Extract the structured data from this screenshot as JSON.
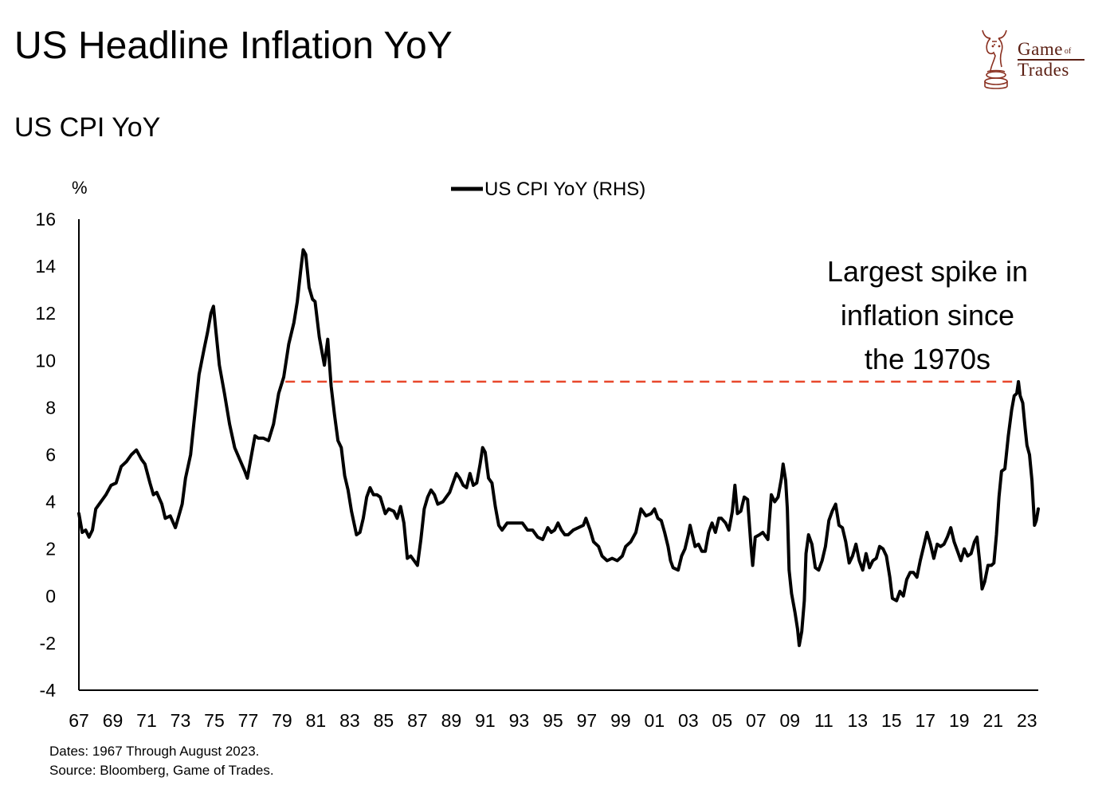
{
  "title": "US Headline Inflation YoY",
  "subtitle": "US CPI YoY",
  "logo": {
    "line1": "Game",
    "of": "of",
    "line2": "Trades",
    "icon": "chess-knight-bull-icon"
  },
  "footnotes": {
    "dates": "Dates: 1967 Through August 2023.",
    "source": "Source: Bloomberg, Game of Trades."
  },
  "colors": {
    "line": "#000000",
    "dashed": "#e8472b",
    "logo": "#5a1e12"
  },
  "chart_data": {
    "type": "line",
    "title": "US CPI YoY",
    "ylabel": "%",
    "xlabel": "",
    "ylim": [
      -4,
      16
    ],
    "yticks": [
      -4,
      -2,
      0,
      2,
      4,
      6,
      8,
      10,
      12,
      14,
      16
    ],
    "xlim": [
      1967,
      2023.67
    ],
    "xticks": [
      {
        "year": 1967,
        "label": "67"
      },
      {
        "year": 1969,
        "label": "69"
      },
      {
        "year": 1971,
        "label": "71"
      },
      {
        "year": 1973,
        "label": "73"
      },
      {
        "year": 1975,
        "label": "75"
      },
      {
        "year": 1977,
        "label": "77"
      },
      {
        "year": 1979,
        "label": "79"
      },
      {
        "year": 1981,
        "label": "81"
      },
      {
        "year": 1983,
        "label": "83"
      },
      {
        "year": 1985,
        "label": "85"
      },
      {
        "year": 1987,
        "label": "87"
      },
      {
        "year": 1989,
        "label": "89"
      },
      {
        "year": 1991,
        "label": "91"
      },
      {
        "year": 1993,
        "label": "93"
      },
      {
        "year": 1995,
        "label": "95"
      },
      {
        "year": 1997,
        "label": "97"
      },
      {
        "year": 1999,
        "label": "99"
      },
      {
        "year": 2001,
        "label": "01"
      },
      {
        "year": 2003,
        "label": "03"
      },
      {
        "year": 2005,
        "label": "05"
      },
      {
        "year": 2007,
        "label": "07"
      },
      {
        "year": 2009,
        "label": "09"
      },
      {
        "year": 2011,
        "label": "11"
      },
      {
        "year": 2013,
        "label": "13"
      },
      {
        "year": 2015,
        "label": "15"
      },
      {
        "year": 2017,
        "label": "17"
      },
      {
        "year": 2019,
        "label": "19"
      },
      {
        "year": 2021,
        "label": "21"
      },
      {
        "year": 2023,
        "label": "23"
      }
    ],
    "legend": {
      "label": "US CPI YoY (RHS)",
      "position": "top-center"
    },
    "grid": false,
    "series": [
      {
        "name": "US CPI YoY (RHS)",
        "points": [
          [
            1967.0,
            3.5
          ],
          [
            1967.2,
            2.7
          ],
          [
            1967.4,
            2.8
          ],
          [
            1967.6,
            2.5
          ],
          [
            1967.8,
            2.8
          ],
          [
            1968.0,
            3.7
          ],
          [
            1968.3,
            4.0
          ],
          [
            1968.6,
            4.3
          ],
          [
            1968.9,
            4.7
          ],
          [
            1969.2,
            4.8
          ],
          [
            1969.5,
            5.5
          ],
          [
            1969.8,
            5.7
          ],
          [
            1970.1,
            6.0
          ],
          [
            1970.4,
            6.2
          ],
          [
            1970.7,
            5.8
          ],
          [
            1970.9,
            5.6
          ],
          [
            1971.2,
            4.8
          ],
          [
            1971.4,
            4.3
          ],
          [
            1971.6,
            4.4
          ],
          [
            1971.9,
            3.9
          ],
          [
            1972.1,
            3.3
          ],
          [
            1972.4,
            3.4
          ],
          [
            1972.7,
            2.9
          ],
          [
            1972.9,
            3.4
          ],
          [
            1973.1,
            3.9
          ],
          [
            1973.3,
            5.0
          ],
          [
            1973.6,
            6.0
          ],
          [
            1973.8,
            7.4
          ],
          [
            1974.1,
            9.4
          ],
          [
            1974.4,
            10.5
          ],
          [
            1974.6,
            11.2
          ],
          [
            1974.8,
            12.0
          ],
          [
            1974.95,
            12.3
          ],
          [
            1975.1,
            11.2
          ],
          [
            1975.3,
            9.8
          ],
          [
            1975.6,
            8.6
          ],
          [
            1975.9,
            7.3
          ],
          [
            1976.2,
            6.3
          ],
          [
            1976.5,
            5.8
          ],
          [
            1976.8,
            5.3
          ],
          [
            1976.95,
            5.0
          ],
          [
            1977.2,
            6.0
          ],
          [
            1977.4,
            6.8
          ],
          [
            1977.6,
            6.7
          ],
          [
            1977.9,
            6.7
          ],
          [
            1978.2,
            6.6
          ],
          [
            1978.5,
            7.3
          ],
          [
            1978.8,
            8.6
          ],
          [
            1979.1,
            9.3
          ],
          [
            1979.4,
            10.7
          ],
          [
            1979.7,
            11.6
          ],
          [
            1979.9,
            12.5
          ],
          [
            1980.1,
            13.8
          ],
          [
            1980.25,
            14.7
          ],
          [
            1980.4,
            14.5
          ],
          [
            1980.6,
            13.1
          ],
          [
            1980.8,
            12.6
          ],
          [
            1980.95,
            12.5
          ],
          [
            1981.2,
            11.0
          ],
          [
            1981.5,
            9.8
          ],
          [
            1981.7,
            10.9
          ],
          [
            1981.9,
            8.9
          ],
          [
            1982.1,
            7.7
          ],
          [
            1982.3,
            6.6
          ],
          [
            1982.5,
            6.3
          ],
          [
            1982.7,
            5.1
          ],
          [
            1982.9,
            4.5
          ],
          [
            1983.1,
            3.6
          ],
          [
            1983.4,
            2.6
          ],
          [
            1983.6,
            2.7
          ],
          [
            1983.8,
            3.3
          ],
          [
            1984.0,
            4.2
          ],
          [
            1984.2,
            4.6
          ],
          [
            1984.4,
            4.3
          ],
          [
            1984.6,
            4.3
          ],
          [
            1984.8,
            4.2
          ],
          [
            1985.1,
            3.5
          ],
          [
            1985.3,
            3.7
          ],
          [
            1985.6,
            3.6
          ],
          [
            1985.8,
            3.3
          ],
          [
            1986.0,
            3.8
          ],
          [
            1986.2,
            3.1
          ],
          [
            1986.4,
            1.6
          ],
          [
            1986.6,
            1.7
          ],
          [
            1986.8,
            1.5
          ],
          [
            1987.0,
            1.3
          ],
          [
            1987.2,
            2.4
          ],
          [
            1987.4,
            3.7
          ],
          [
            1987.6,
            4.2
          ],
          [
            1987.8,
            4.5
          ],
          [
            1988.0,
            4.3
          ],
          [
            1988.2,
            3.9
          ],
          [
            1988.5,
            4.0
          ],
          [
            1988.7,
            4.2
          ],
          [
            1988.9,
            4.4
          ],
          [
            1989.1,
            4.8
          ],
          [
            1989.3,
            5.2
          ],
          [
            1989.5,
            5.0
          ],
          [
            1989.7,
            4.7
          ],
          [
            1989.9,
            4.6
          ],
          [
            1990.1,
            5.2
          ],
          [
            1990.3,
            4.7
          ],
          [
            1990.5,
            4.8
          ],
          [
            1990.7,
            5.6
          ],
          [
            1990.85,
            6.3
          ],
          [
            1991.0,
            6.1
          ],
          [
            1991.2,
            5.0
          ],
          [
            1991.4,
            4.8
          ],
          [
            1991.6,
            3.8
          ],
          [
            1991.8,
            3.0
          ],
          [
            1992.0,
            2.8
          ],
          [
            1992.3,
            3.1
          ],
          [
            1992.6,
            3.1
          ],
          [
            1992.9,
            3.1
          ],
          [
            1993.2,
            3.1
          ],
          [
            1993.5,
            2.8
          ],
          [
            1993.8,
            2.8
          ],
          [
            1994.1,
            2.5
          ],
          [
            1994.4,
            2.4
          ],
          [
            1994.7,
            2.9
          ],
          [
            1994.9,
            2.7
          ],
          [
            1995.1,
            2.8
          ],
          [
            1995.3,
            3.1
          ],
          [
            1995.5,
            2.8
          ],
          [
            1995.7,
            2.6
          ],
          [
            1995.9,
            2.6
          ],
          [
            1996.2,
            2.8
          ],
          [
            1996.5,
            2.9
          ],
          [
            1996.8,
            3.0
          ],
          [
            1996.95,
            3.3
          ],
          [
            1997.2,
            2.8
          ],
          [
            1997.4,
            2.3
          ],
          [
            1997.7,
            2.1
          ],
          [
            1997.9,
            1.7
          ],
          [
            1998.2,
            1.5
          ],
          [
            1998.5,
            1.6
          ],
          [
            1998.8,
            1.5
          ],
          [
            1999.1,
            1.7
          ],
          [
            1999.3,
            2.1
          ],
          [
            1999.6,
            2.3
          ],
          [
            1999.9,
            2.7
          ],
          [
            2000.2,
            3.7
          ],
          [
            2000.5,
            3.4
          ],
          [
            2000.8,
            3.5
          ],
          [
            2001.0,
            3.7
          ],
          [
            2001.2,
            3.3
          ],
          [
            2001.4,
            3.2
          ],
          [
            2001.6,
            2.7
          ],
          [
            2001.8,
            2.1
          ],
          [
            2001.95,
            1.5
          ],
          [
            2002.1,
            1.2
          ],
          [
            2002.4,
            1.1
          ],
          [
            2002.6,
            1.7
          ],
          [
            2002.8,
            2.0
          ],
          [
            2003.0,
            2.6
          ],
          [
            2003.1,
            3.0
          ],
          [
            2003.4,
            2.1
          ],
          [
            2003.6,
            2.2
          ],
          [
            2003.8,
            1.9
          ],
          [
            2004.0,
            1.9
          ],
          [
            2004.2,
            2.7
          ],
          [
            2004.4,
            3.1
          ],
          [
            2004.6,
            2.7
          ],
          [
            2004.8,
            3.3
          ],
          [
            2004.95,
            3.3
          ],
          [
            2005.2,
            3.1
          ],
          [
            2005.4,
            2.8
          ],
          [
            2005.6,
            3.6
          ],
          [
            2005.75,
            4.7
          ],
          [
            2005.9,
            3.5
          ],
          [
            2006.1,
            3.6
          ],
          [
            2006.3,
            4.2
          ],
          [
            2006.5,
            4.1
          ],
          [
            2006.7,
            2.1
          ],
          [
            2006.8,
            1.3
          ],
          [
            2006.95,
            2.5
          ],
          [
            2007.2,
            2.6
          ],
          [
            2007.4,
            2.7
          ],
          [
            2007.7,
            2.4
          ],
          [
            2007.9,
            4.3
          ],
          [
            2008.1,
            4.0
          ],
          [
            2008.3,
            4.2
          ],
          [
            2008.5,
            5.0
          ],
          [
            2008.6,
            5.6
          ],
          [
            2008.75,
            4.9
          ],
          [
            2008.85,
            3.7
          ],
          [
            2008.95,
            1.1
          ],
          [
            2009.1,
            0.1
          ],
          [
            2009.3,
            -0.7
          ],
          [
            2009.45,
            -1.4
          ],
          [
            2009.55,
            -2.1
          ],
          [
            2009.7,
            -1.5
          ],
          [
            2009.85,
            -0.2
          ],
          [
            2009.95,
            1.8
          ],
          [
            2010.1,
            2.6
          ],
          [
            2010.3,
            2.2
          ],
          [
            2010.5,
            1.2
          ],
          [
            2010.7,
            1.1
          ],
          [
            2010.9,
            1.5
          ],
          [
            2011.1,
            2.1
          ],
          [
            2011.3,
            3.2
          ],
          [
            2011.5,
            3.6
          ],
          [
            2011.7,
            3.9
          ],
          [
            2011.9,
            3.0
          ],
          [
            2012.1,
            2.9
          ],
          [
            2012.3,
            2.3
          ],
          [
            2012.5,
            1.4
          ],
          [
            2012.7,
            1.7
          ],
          [
            2012.9,
            2.2
          ],
          [
            2013.1,
            1.5
          ],
          [
            2013.3,
            1.1
          ],
          [
            2013.5,
            1.8
          ],
          [
            2013.7,
            1.2
          ],
          [
            2013.9,
            1.5
          ],
          [
            2014.1,
            1.6
          ],
          [
            2014.3,
            2.1
          ],
          [
            2014.5,
            2.0
          ],
          [
            2014.7,
            1.7
          ],
          [
            2014.9,
            0.8
          ],
          [
            2015.05,
            -0.1
          ],
          [
            2015.3,
            -0.2
          ],
          [
            2015.5,
            0.2
          ],
          [
            2015.7,
            0.0
          ],
          [
            2015.9,
            0.7
          ],
          [
            2016.1,
            1.0
          ],
          [
            2016.3,
            1.0
          ],
          [
            2016.5,
            0.8
          ],
          [
            2016.7,
            1.5
          ],
          [
            2016.9,
            2.1
          ],
          [
            2017.1,
            2.7
          ],
          [
            2017.3,
            2.2
          ],
          [
            2017.5,
            1.6
          ],
          [
            2017.7,
            2.2
          ],
          [
            2017.9,
            2.1
          ],
          [
            2018.1,
            2.2
          ],
          [
            2018.3,
            2.5
          ],
          [
            2018.5,
            2.9
          ],
          [
            2018.7,
            2.3
          ],
          [
            2018.9,
            1.9
          ],
          [
            2019.1,
            1.5
          ],
          [
            2019.3,
            2.0
          ],
          [
            2019.5,
            1.7
          ],
          [
            2019.7,
            1.8
          ],
          [
            2019.9,
            2.3
          ],
          [
            2020.05,
            2.5
          ],
          [
            2020.2,
            1.5
          ],
          [
            2020.35,
            0.3
          ],
          [
            2020.5,
            0.6
          ],
          [
            2020.7,
            1.3
          ],
          [
            2020.9,
            1.3
          ],
          [
            2021.05,
            1.4
          ],
          [
            2021.2,
            2.6
          ],
          [
            2021.35,
            4.2
          ],
          [
            2021.5,
            5.3
          ],
          [
            2021.7,
            5.4
          ],
          [
            2021.9,
            6.8
          ],
          [
            2022.1,
            7.9
          ],
          [
            2022.25,
            8.5
          ],
          [
            2022.4,
            8.6
          ],
          [
            2022.5,
            9.1
          ],
          [
            2022.6,
            8.5
          ],
          [
            2022.75,
            8.2
          ],
          [
            2022.9,
            7.1
          ],
          [
            2023.0,
            6.4
          ],
          [
            2023.15,
            6.0
          ],
          [
            2023.3,
            4.9
          ],
          [
            2023.45,
            3.0
          ],
          [
            2023.55,
            3.2
          ],
          [
            2023.67,
            3.7
          ]
        ]
      }
    ],
    "reference_line": {
      "value": 9.1,
      "from_year": 1979.2,
      "to_year": 2022.5,
      "style": "dashed"
    },
    "annotation": {
      "lines": [
        "Largest spike in",
        "inflation since",
        "the 1970s"
      ]
    }
  }
}
